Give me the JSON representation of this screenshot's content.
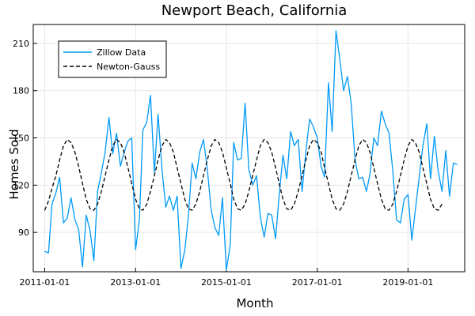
{
  "chart_data": {
    "type": "line",
    "title": "Newport Beach, California",
    "xlabel": "Month",
    "ylabel": "Homes Sold",
    "xlim": [
      "2010-10-01",
      "2020-04-01"
    ],
    "ylim": [
      65,
      222
    ],
    "grid": true,
    "legend_position": "top-left",
    "x_ticks": [
      "2011-01-01",
      "2013-01-01",
      "2015-01-01",
      "2017-01-01",
      "2019-01-01"
    ],
    "y_ticks": [
      90,
      120,
      150,
      180,
      210
    ],
    "x_start": "2011-01-01",
    "x_step": "1 month",
    "series": [
      {
        "name": "Zillow Data",
        "color": "#009af9",
        "style": "solid",
        "values": [
          78,
          77,
          108,
          115,
          125,
          96,
          99,
          112,
          98,
          92,
          68,
          101,
          91,
          72,
          116,
          128,
          141,
          163,
          140,
          153,
          132,
          141,
          148,
          150,
          79,
          98,
          155,
          160,
          177,
          128,
          165,
          130,
          106,
          113,
          104,
          113,
          67,
          79,
          100,
          134,
          124,
          141,
          149,
          130,
          104,
          93,
          88,
          112,
          66,
          82,
          147,
          136,
          137,
          172,
          130,
          120,
          126,
          100,
          87,
          102,
          101,
          86,
          114,
          139,
          124,
          154,
          145,
          149,
          116,
          141,
          162,
          157,
          150,
          132,
          125,
          185,
          154,
          218,
          200,
          180,
          189,
          172,
          136,
          124,
          125,
          116,
          127,
          150,
          145,
          167,
          159,
          153,
          129,
          98,
          96,
          111,
          114,
          85,
          104,
          125,
          145,
          159,
          124,
          151,
          129,
          116,
          142,
          113,
          134,
          133
        ]
      },
      {
        "name": "Newton-Gauss",
        "color": "#000000",
        "style": "dashed",
        "values": [
          104,
          110,
          118,
          126,
          136,
          145,
          149,
          147,
          141,
          132,
          121,
          111,
          105,
          104,
          108,
          116,
          126,
          136,
          145,
          149,
          147,
          141,
          131,
          121,
          111,
          105,
          104,
          108,
          116,
          126,
          136,
          145,
          149,
          147,
          141,
          131,
          121,
          111,
          105,
          104,
          108,
          116,
          126,
          136,
          145,
          149,
          147,
          141,
          131,
          121,
          111,
          105,
          104,
          108,
          116,
          126,
          136,
          145,
          149,
          147,
          141,
          131,
          121,
          111,
          105,
          104,
          108,
          116,
          126,
          136,
          145,
          149,
          147,
          141,
          131,
          121,
          111,
          105,
          104,
          108,
          116,
          126,
          136,
          145,
          149,
          147,
          141,
          131,
          121,
          111,
          105,
          104,
          108,
          116,
          126,
          136,
          145,
          149,
          147,
          141,
          131,
          121,
          111,
          105,
          104,
          108
        ]
      }
    ]
  }
}
